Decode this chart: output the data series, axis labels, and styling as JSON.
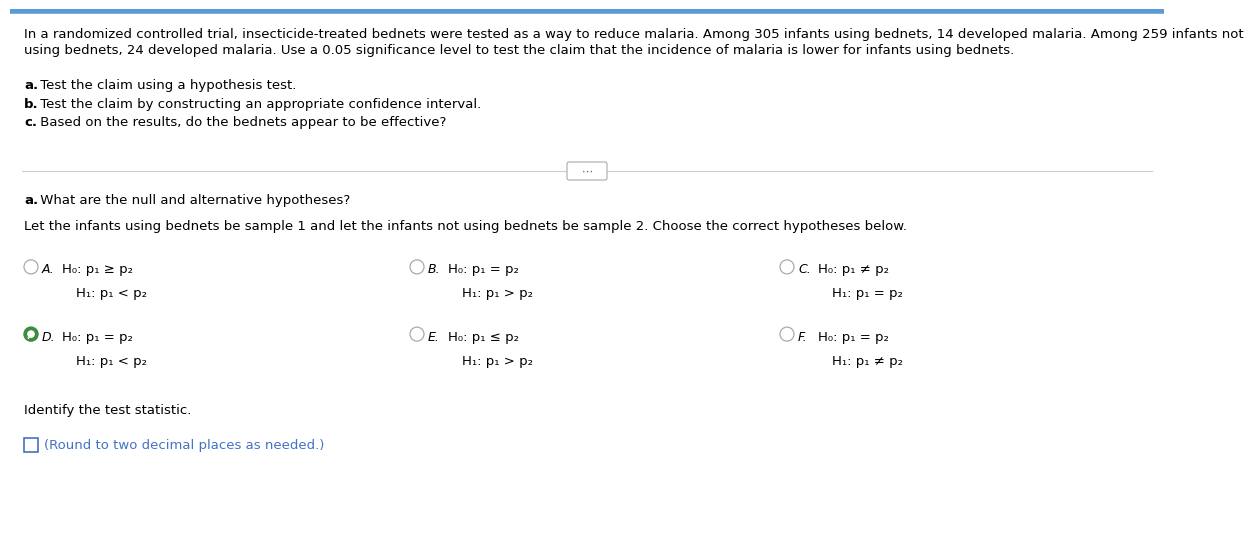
{
  "background_color": "#ffffff",
  "top_paragraph_line1": "In a randomized controlled trial, insecticide-treated bednets were tested as a way to reduce malaria. Among 305 infants using bednets, 14 developed malaria. Among 259 infants not",
  "top_paragraph_line2": "using bednets, 24 developed malaria. Use a 0.05 significance level to test the claim that the incidence of malaria is lower for infants using bednets.",
  "bullet_a_bold": "a.",
  "bullet_a_rest": " Test the claim using a hypothesis test.",
  "bullet_b_bold": "b.",
  "bullet_b_rest": " Test the claim by constructing an appropriate confidence interval.",
  "bullet_c_bold": "c.",
  "bullet_c_rest": " Based on the results, do the bednets appear to be effective?",
  "section_a_bold": "a.",
  "section_a_rest": " What are the null and alternative hypotheses?",
  "section_a_subtitle": "Let the infants using bednets be sample 1 and let the infants not using bednets be sample 2. Choose the correct hypotheses below.",
  "options": {
    "A": {
      "h0": "H₀: p₁ ≥ p₂",
      "h1": "H₁: p₁ < p₂",
      "selected": false
    },
    "B": {
      "h0": "H₀: p₁ = p₂",
      "h1": "H₁: p₁ > p₂",
      "selected": false
    },
    "C": {
      "h0": "H₀: p₁ ≠ p₂",
      "h1": "H₁: p₁ = p₂",
      "selected": false
    },
    "D": {
      "h0": "H₀: p₁ = p₂",
      "h1": "H₁: p₁ < p₂",
      "selected": true
    },
    "E": {
      "h0": "H₀: p₁ ≤ p₂",
      "h1": "H₁: p₁ > p₂",
      "selected": false
    },
    "F": {
      "h0": "H₀: p₁ = p₂",
      "h1": "H₁: p₁ ≠ p₂",
      "selected": false
    }
  },
  "identify_text": "Identify the test statistic.",
  "round_note": "(Round to two decimal places as needed.)",
  "top_border_color": "#5b9bd5",
  "font_color_normal": "#000000",
  "font_color_blue": "#4472C4",
  "checkbox_color": "#4472C4",
  "radio_color_unselected": "#aaaaaa",
  "selected_check_color": "#3d8b3d"
}
